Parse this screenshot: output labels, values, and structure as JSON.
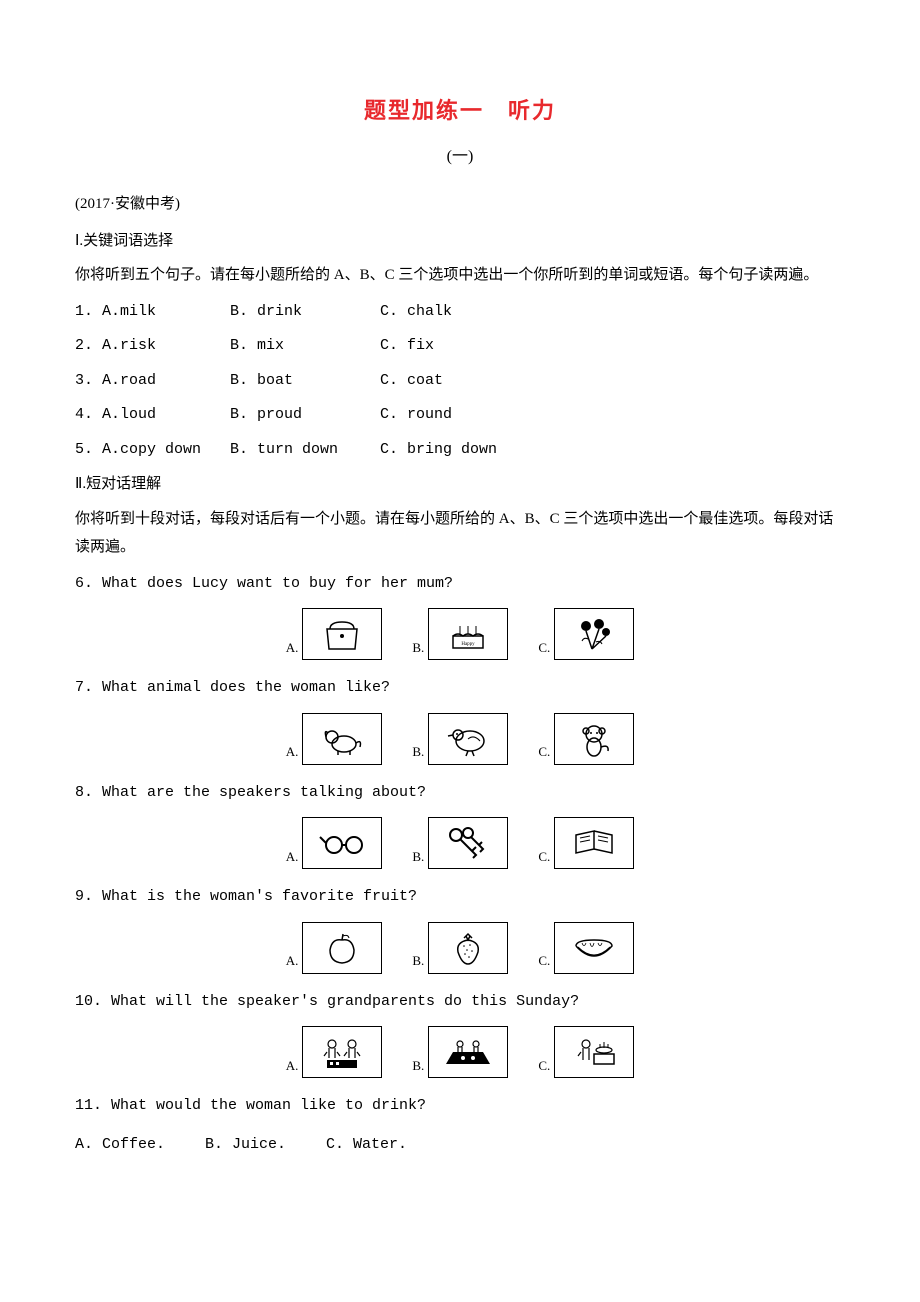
{
  "doc": {
    "title_main": "题型加练一　听力",
    "title_sub": "(一)",
    "source": "(2017·安徽中考)",
    "section1": {
      "header": "Ⅰ.关键词语选择",
      "instructions": "你将听到五个句子。请在每小题所给的 A、B、C 三个选项中选出一个你所听到的单词或短语。每个句子读两遍。",
      "questions": [
        {
          "num": "1.",
          "a": "A.milk",
          "b": "B. drink",
          "c": "C. chalk"
        },
        {
          "num": "2.",
          "a": "A.risk",
          "b": "B. mix",
          "c": "C. fix"
        },
        {
          "num": "3.",
          "a": "A.road",
          "b": "B. boat",
          "c": "C. coat"
        },
        {
          "num": "4.",
          "a": "A.loud",
          "b": "B. proud",
          "c": "C. round"
        },
        {
          "num": "5.",
          "a": "A.copy down",
          "b": "B. turn down",
          "c": "C. bring down"
        }
      ]
    },
    "section2": {
      "header": "Ⅱ.短对话理解",
      "instructions": "你将听到十段对话，每段对话后有一个小题。请在每小题所给的 A、B、C 三个选项中选出一个最佳选项。每段对话读两遍。",
      "questions": [
        {
          "num": "6.",
          "text": "What does Lucy want to buy for her mum?",
          "type": "image",
          "imgs": [
            "handbag",
            "birthday-cake",
            "flowers"
          ]
        },
        {
          "num": "7.",
          "text": "What animal does the woman like?",
          "type": "image",
          "imgs": [
            "dog",
            "bird",
            "monkey"
          ]
        },
        {
          "num": "8.",
          "text": "What are the speakers talking about?",
          "type": "image",
          "imgs": [
            "glasses",
            "keys",
            "books"
          ]
        },
        {
          "num": "9.",
          "text": "What is the woman's favorite fruit?",
          "type": "image",
          "imgs": [
            "apple",
            "strawberry",
            "watermelon"
          ]
        },
        {
          "num": "10.",
          "text": "What will the speaker's grandparents do this Sunday?",
          "type": "image",
          "imgs": [
            "play-chess",
            "picnic",
            "cooking"
          ]
        },
        {
          "num": "11.",
          "text": "What would the woman like to drink?",
          "type": "text",
          "opts": [
            "A. Coffee.",
            "B. Juice.",
            "C. Water."
          ]
        }
      ]
    },
    "labels": {
      "a": "A.",
      "b": "B.",
      "c": "C."
    },
    "colors": {
      "title": "#e8292d",
      "text": "#000000",
      "bg": "#ffffff",
      "border": "#000000"
    }
  }
}
